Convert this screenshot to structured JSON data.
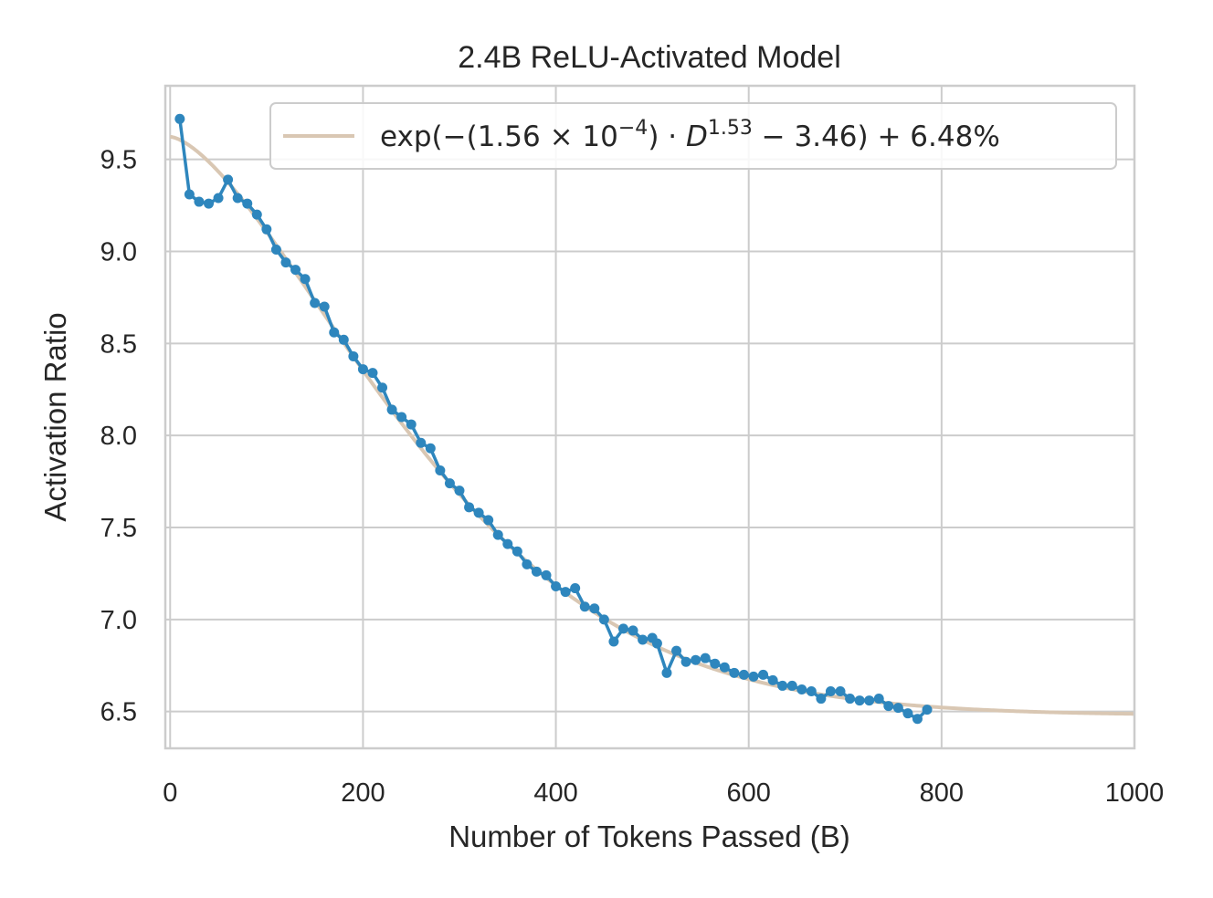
{
  "chart_data": {
    "type": "line",
    "title": "2.4B ReLU-Activated Model",
    "xlabel": "Number of Tokens Passed (B)",
    "ylabel": "Activation Ratio",
    "xlim": [
      -5,
      1000
    ],
    "ylim": [
      6.3,
      9.9
    ],
    "grid": true,
    "x_ticks": [
      0,
      200,
      400,
      600,
      800,
      1000
    ],
    "x_tick_labels": [
      "0",
      "200",
      "400",
      "600",
      "800",
      "1000"
    ],
    "y_ticks": [
      6.5,
      7.0,
      7.5,
      8.0,
      8.5,
      9.0,
      9.5
    ],
    "y_tick_labels": [
      "6.5",
      "7.0",
      "7.5",
      "8.0",
      "8.5",
      "9.0",
      "9.5"
    ],
    "legend": {
      "placement": "top-right",
      "entries": [
        {
          "series": "fit",
          "prefix": "exp(−(1.56 × 10",
          "exp1": "−4",
          "mid": ") · ",
          "var": "D",
          "exp2": "1.53",
          "suffix": " − 3.46) + 6.48%"
        }
      ]
    },
    "series": [
      {
        "name": "fit",
        "kind": "fit-curve",
        "color": "#d9c7b3",
        "formula": {
          "a": 0.000156,
          "b": 1.53,
          "c": 3.46,
          "d": 6.48
        },
        "x_range": [
          0,
          1000
        ]
      },
      {
        "name": "observed",
        "kind": "line-markers",
        "color": "#2e86bd",
        "x": [
          10,
          20,
          30,
          40,
          50,
          60,
          70,
          80,
          90,
          100,
          110,
          120,
          130,
          140,
          150,
          160,
          170,
          180,
          190,
          200,
          210,
          220,
          230,
          240,
          250,
          260,
          270,
          280,
          290,
          300,
          310,
          320,
          330,
          340,
          350,
          360,
          370,
          380,
          390,
          400,
          410,
          420,
          430,
          440,
          450,
          460,
          470,
          480,
          490,
          500,
          505,
          515,
          525,
          535,
          545,
          555,
          565,
          575,
          585,
          595,
          605,
          615,
          625,
          635,
          645,
          655,
          665,
          675,
          685,
          695,
          705,
          715,
          725,
          735,
          745,
          755,
          765,
          775,
          785
        ],
        "y": [
          9.72,
          9.31,
          9.27,
          9.26,
          9.29,
          9.39,
          9.29,
          9.26,
          9.2,
          9.12,
          9.01,
          8.94,
          8.9,
          8.85,
          8.72,
          8.7,
          8.56,
          8.52,
          8.43,
          8.36,
          8.34,
          8.26,
          8.14,
          8.1,
          8.06,
          7.96,
          7.93,
          7.81,
          7.74,
          7.7,
          7.61,
          7.58,
          7.54,
          7.46,
          7.41,
          7.37,
          7.3,
          7.26,
          7.24,
          7.18,
          7.15,
          7.17,
          7.07,
          7.06,
          7.0,
          6.88,
          6.95,
          6.94,
          6.89,
          6.9,
          6.87,
          6.71,
          6.83,
          6.77,
          6.78,
          6.79,
          6.76,
          6.74,
          6.71,
          6.7,
          6.69,
          6.7,
          6.67,
          6.64,
          6.64,
          6.62,
          6.61,
          6.57,
          6.61,
          6.61,
          6.57,
          6.56,
          6.56,
          6.57,
          6.53,
          6.52,
          6.49,
          6.46,
          6.51
        ]
      }
    ]
  }
}
